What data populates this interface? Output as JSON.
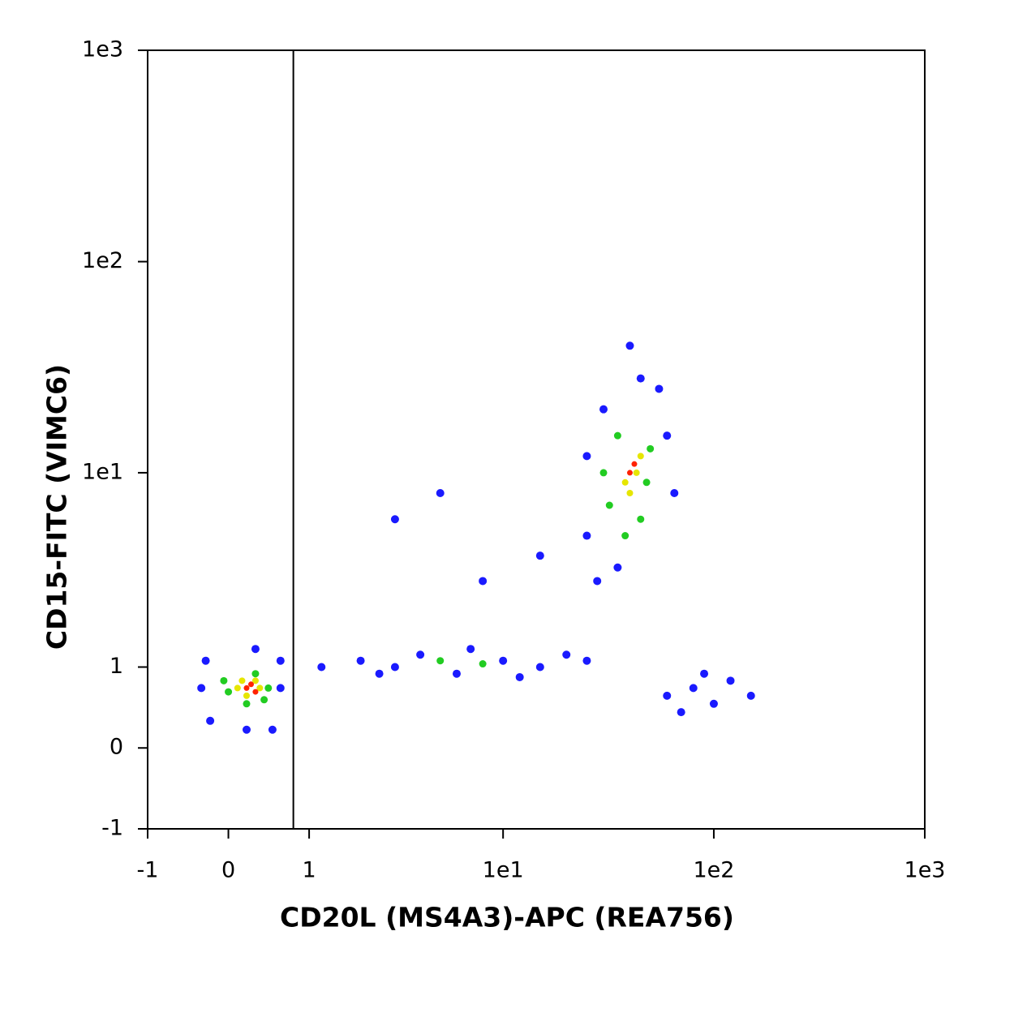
{
  "chart_data": {
    "type": "scatter",
    "scale": "asinh",
    "x_label": "CD20L (MS4A3)-APC (REA756)",
    "y_label": "CD15-FITC (VIMC6)",
    "xlim": [
      -1,
      1000
    ],
    "ylim": [
      -1,
      1000
    ],
    "xticks": [
      -1,
      0,
      1,
      {
        "value": 10,
        "label": "1e1"
      },
      {
        "value": 100,
        "label": "1e2"
      },
      {
        "value": 1000,
        "label": "1e3"
      }
    ],
    "yticks": [
      -1,
      0,
      1,
      {
        "value": 10,
        "label": "1e1"
      },
      {
        "value": 100,
        "label": "1e2"
      },
      {
        "value": 1000,
        "label": "1e3"
      }
    ],
    "gate_x": 0.77,
    "series": [
      {
        "color": "#1a1aff",
        "x": [
          -0.3,
          0.6,
          0.2,
          0.3,
          -0.2,
          0.6,
          0.5,
          -0.25,
          1.2,
          2,
          3,
          4,
          6,
          10,
          15,
          20,
          25,
          2.5,
          12,
          7,
          25,
          28,
          60,
          55,
          30,
          45,
          35,
          65,
          25,
          40,
          60,
          80,
          100,
          120,
          150,
          70,
          90,
          5,
          3,
          15,
          8
        ],
        "y": [
          0.7,
          0.7,
          0.2,
          1.3,
          0.3,
          1.1,
          0.2,
          1.1,
          1.0,
          1.1,
          1.0,
          1.2,
          0.9,
          1.1,
          1.0,
          1.2,
          1.1,
          0.9,
          0.85,
          1.3,
          5,
          3,
          15,
          25,
          20,
          28,
          3.5,
          8,
          12,
          40,
          0.6,
          0.7,
          0.5,
          0.8,
          0.6,
          0.4,
          0.9,
          8,
          6,
          4,
          3
        ]
      },
      {
        "color": "#22cc22",
        "x": [
          0,
          0.45,
          0.2,
          0.3,
          -0.05,
          0.4,
          32,
          50,
          35,
          45,
          38,
          30,
          48,
          5,
          8
        ],
        "y": [
          0.65,
          0.7,
          0.5,
          0.9,
          0.8,
          0.55,
          7,
          13,
          15,
          6,
          5,
          10,
          9,
          1.1,
          1.05
        ]
      },
      {
        "color": "#e6e600",
        "x": [
          0.1,
          0.35,
          0.2,
          0.3,
          0.15,
          38,
          45,
          40,
          43
        ],
        "y": [
          0.7,
          0.7,
          0.6,
          0.8,
          0.8,
          9,
          12,
          8,
          10
        ]
      },
      {
        "color": "#ff2200",
        "x": [
          0.2,
          0.3,
          0.25,
          40,
          42
        ],
        "y": [
          0.7,
          0.65,
          0.75,
          10,
          11
        ]
      }
    ]
  }
}
